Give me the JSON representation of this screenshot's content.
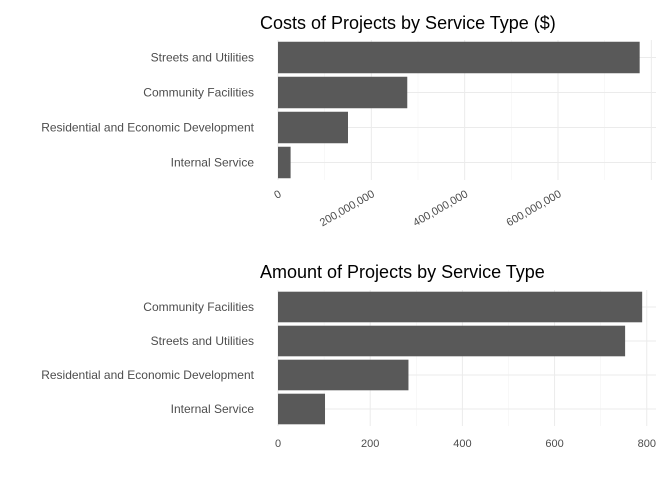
{
  "chart_data": [
    {
      "type": "bar",
      "orientation": "horizontal",
      "title": "Costs of Projects by Service Type ($)",
      "categories": [
        "Streets and Utilities",
        "Community Facilities",
        "Residential and Economic Development",
        "Internal Service"
      ],
      "values": [
        775000000,
        277000000,
        150000000,
        27000000
      ],
      "xlim": [
        0,
        810000000
      ],
      "xticks": [
        0,
        200000000,
        400000000,
        600000000
      ],
      "xtick_labels": [
        "0",
        "200,000,000",
        "400,000,000",
        "600,000,000"
      ],
      "xtick_rotation": 30,
      "xlabel": "",
      "ylabel": "",
      "grid": true,
      "bar_color": "#595959"
    },
    {
      "type": "bar",
      "orientation": "horizontal",
      "title": "Amount of Projects by Service Type",
      "categories": [
        "Community Facilities",
        "Streets and Utilities",
        "Residential and Economic Development",
        "Internal Service"
      ],
      "values": [
        790,
        753,
        283,
        102
      ],
      "xlim": [
        0,
        820
      ],
      "xticks": [
        0,
        200,
        400,
        600,
        800
      ],
      "xtick_labels": [
        "0",
        "200",
        "400",
        "600",
        "800"
      ],
      "xtick_rotation": 0,
      "xlabel": "",
      "ylabel": "",
      "grid": true,
      "bar_color": "#595959"
    }
  ]
}
